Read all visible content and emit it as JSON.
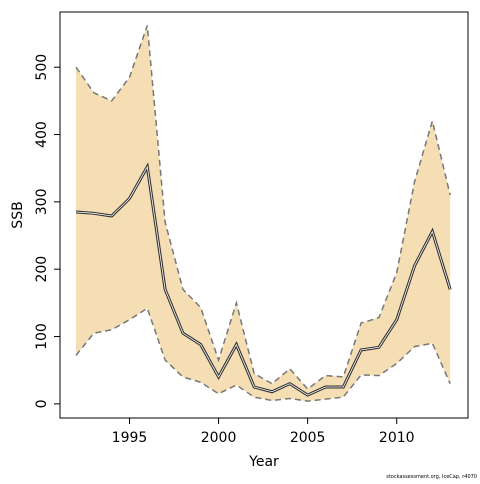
{
  "chart_data": {
    "type": "line",
    "x": [
      1992,
      1993,
      1994,
      1995,
      1996,
      1997,
      1998,
      1999,
      2000,
      2001,
      2002,
      2003,
      2004,
      2005,
      2006,
      2007,
      2008,
      2009,
      2010,
      2011,
      2012,
      2013
    ],
    "values": [
      285,
      283,
      279,
      305,
      352,
      170,
      105,
      88,
      40,
      88,
      25,
      18,
      30,
      13,
      25,
      25,
      80,
      84,
      125,
      205,
      256,
      170
    ],
    "upper": [
      500,
      462,
      450,
      485,
      562,
      270,
      170,
      143,
      65,
      150,
      45,
      30,
      52,
      22,
      42,
      40,
      120,
      128,
      195,
      330,
      420,
      310
    ],
    "lower": [
      72,
      105,
      110,
      125,
      142,
      65,
      40,
      32,
      15,
      28,
      10,
      5,
      8,
      4,
      7,
      10,
      43,
      42,
      60,
      85,
      90,
      30
    ],
    "color": "#333333",
    "band_color": "#f5deb3",
    "band_line_color": "#777777",
    "x_label": "Year",
    "y_label": "SSB",
    "caption": "stockassessment.org, IceCap, r4070",
    "xlim": [
      1991.1,
      2014.0
    ],
    "ylim": [
      -21,
      582
    ],
    "xticks": [
      1995,
      2000,
      2005,
      2010
    ],
    "yticks": [
      0,
      100,
      200,
      300,
      400,
      500
    ],
    "grid": false
  }
}
